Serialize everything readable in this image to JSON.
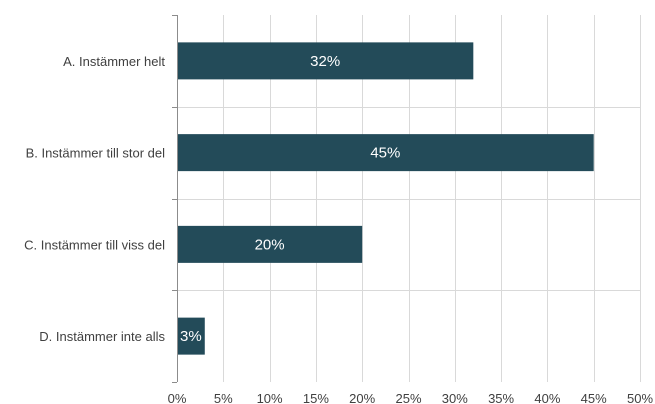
{
  "chart_data": {
    "type": "bar",
    "orientation": "horizontal",
    "categories": [
      "A. Instämmer helt",
      "B. Instämmer till stor del",
      "C. Instämmer till viss del",
      "D. Instämmer inte alls"
    ],
    "values": [
      32,
      45,
      20,
      3
    ],
    "data_labels": [
      "32%",
      "45%",
      "20%",
      "3%"
    ],
    "xlim": [
      0,
      50
    ],
    "x_ticks": [
      "0%",
      "5%",
      "10%",
      "15%",
      "20%",
      "25%",
      "30%",
      "35%",
      "40%",
      "45%",
      "50%"
    ],
    "title": "",
    "xlabel": "",
    "ylabel": "",
    "grid": true,
    "legend": "none",
    "colors": {
      "bar": "#234b59",
      "grid": "#d9d9d9",
      "axis": "#8c8c8c",
      "text": "#404040",
      "data_label": "#ffffff"
    }
  }
}
